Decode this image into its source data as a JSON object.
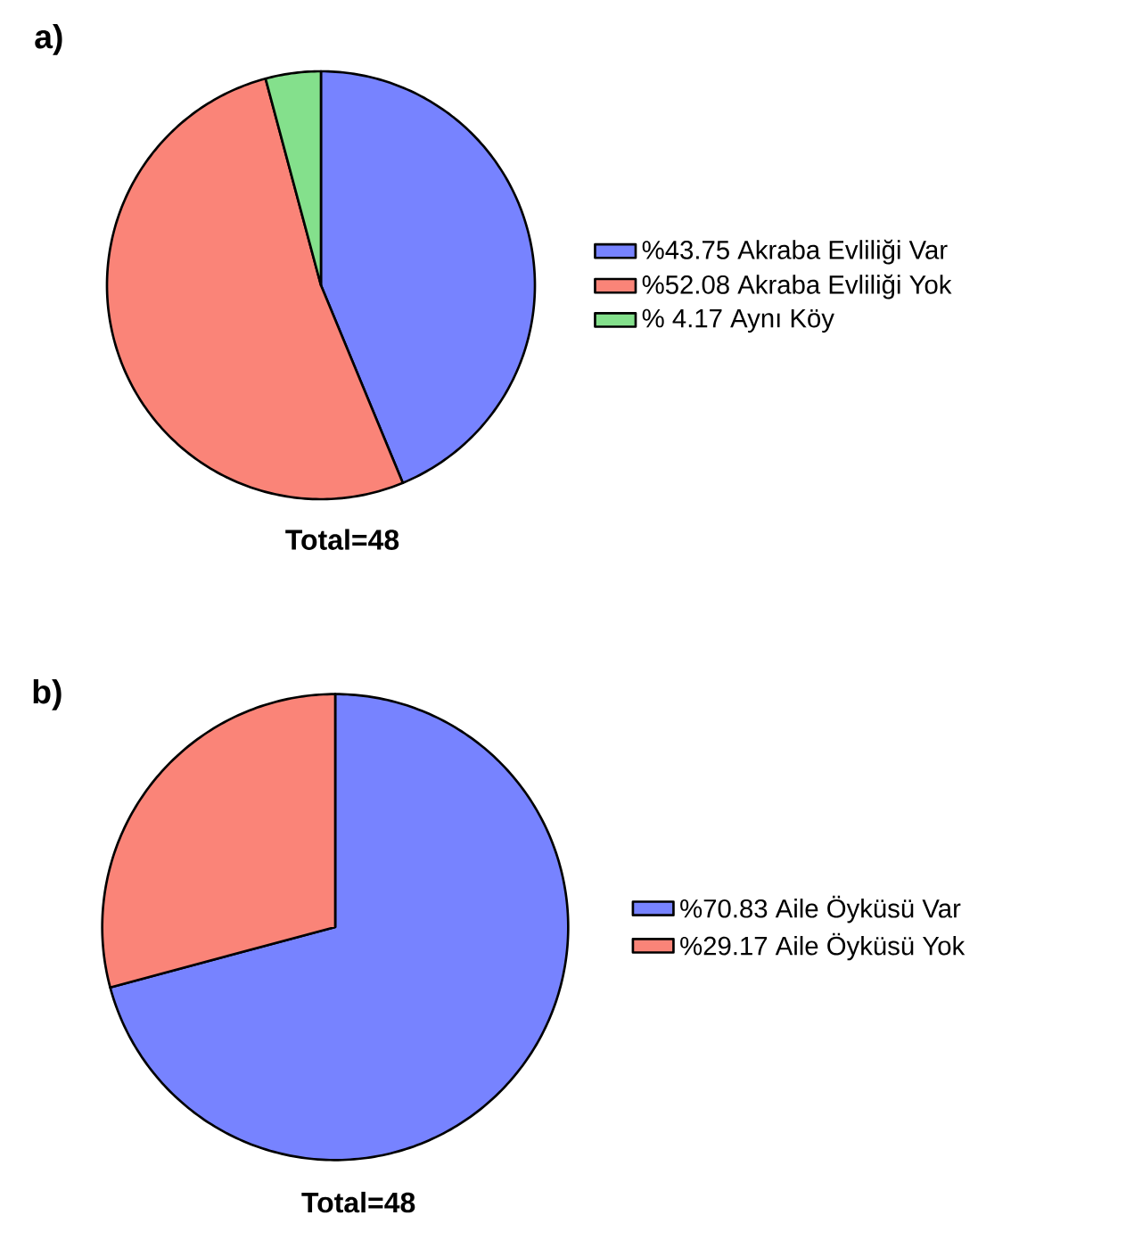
{
  "chart_data": [
    {
      "type": "pie",
      "title": "a)",
      "categories": [
        "%43.75 Akraba Evliliği Var",
        "%52.08 Akraba Evliliği Yok",
        "% 4.17 Aynı Köy"
      ],
      "values": [
        43.75,
        52.08,
        4.17
      ],
      "colors": [
        "#7783ff",
        "#fa8478",
        "#84e08c"
      ],
      "legend": "right",
      "annotations": [
        "Total=48"
      ]
    },
    {
      "type": "pie",
      "title": "b)",
      "categories": [
        "%70.83 Aile Öyküsü Var",
        "%29.17 Aile Öyküsü Yok"
      ],
      "values": [
        70.83,
        29.17
      ],
      "colors": [
        "#7783ff",
        "#fa8478"
      ],
      "legend": "right",
      "annotations": [
        "Total=48"
      ]
    }
  ]
}
